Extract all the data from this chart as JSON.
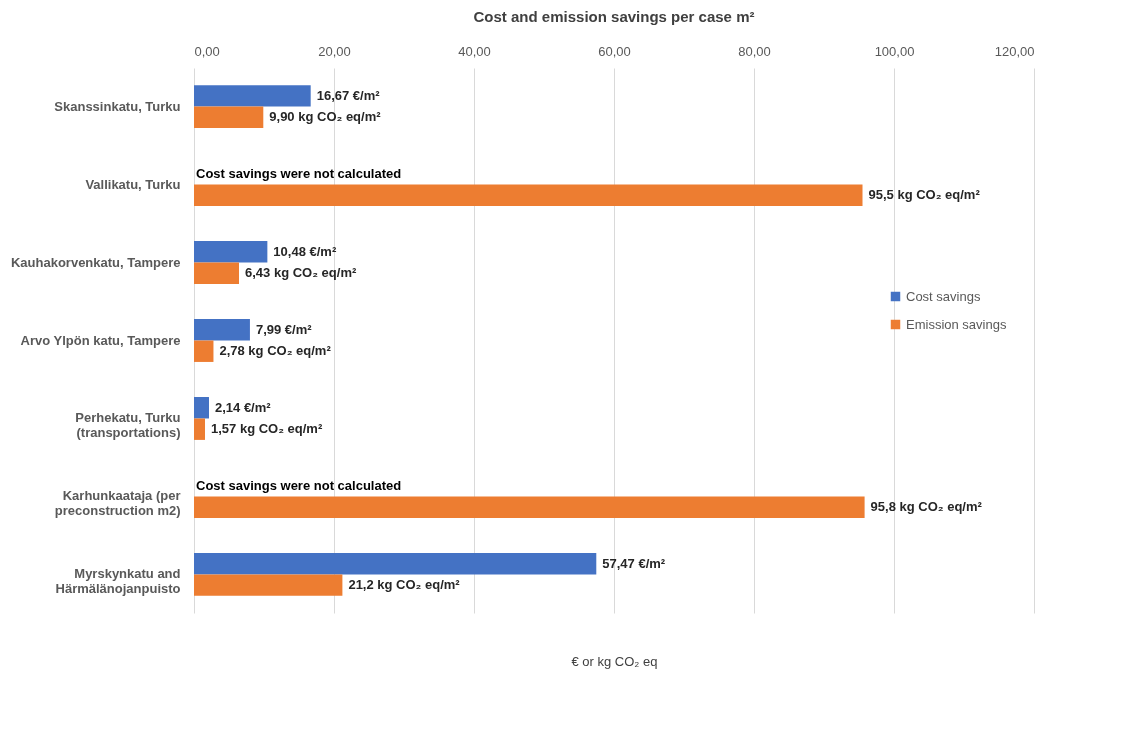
{
  "chart_data": {
    "type": "bar",
    "orientation": "horizontal",
    "title": "Cost and emission savings per case m²",
    "xlabel": "€ or kg CO₂ eq",
    "categories": [
      "Skanssinkatu, Turku",
      "Vallikatu, Turku",
      "Kauhakorvenkatu, Tampere",
      "Arvo Ylpön katu, Tampere",
      "Perhekatu, Turku\n(transportations)",
      "Karhunkaataja (per\npreconstruction m2)",
      "Myrskynkatu and\nHärmälänojanpuisto"
    ],
    "series": [
      {
        "name": "Cost savings",
        "color": "#4472c4",
        "values": [
          16.67,
          null,
          10.48,
          7.99,
          2.14,
          null,
          57.47
        ],
        "value_labels": [
          "16,67 €/m²",
          null,
          "10,48 €/m²",
          "7,99 €/m²",
          "2,14 €/m²",
          null,
          "57,47 €/m²"
        ]
      },
      {
        "name": "Emission savings",
        "color": "#ed7d31",
        "values": [
          9.9,
          95.5,
          6.43,
          2.78,
          1.57,
          95.8,
          21.2
        ],
        "value_labels": [
          "9,90 kg CO₂ eq/m²",
          "95,5 kg CO₂ eq/m²",
          "6,43 kg CO₂ eq/m²",
          "2,78 kg CO₂ eq/m²",
          "1,57 kg CO₂ eq/m²",
          "95,8 kg CO₂ eq/m²",
          "21,2 kg CO₂ eq/m²"
        ]
      }
    ],
    "xlim": [
      0,
      120
    ],
    "xticks": [
      {
        "value": 0,
        "label": "0,00"
      },
      {
        "value": 20,
        "label": "20,00"
      },
      {
        "value": 40,
        "label": "40,00"
      },
      {
        "value": 60,
        "label": "60,00"
      },
      {
        "value": 80,
        "label": "80,00"
      },
      {
        "value": 100,
        "label": "100,00"
      },
      {
        "value": 120,
        "label": "120,00"
      }
    ],
    "annotations": [
      {
        "text": "Cost savings were not calculated",
        "x": 0,
        "y": "Vallikatu, Turku"
      },
      {
        "text": "Cost savings were not calculated",
        "x": 0,
        "y": "Karhunkaataja (per\npreconstruction m2)"
      }
    ],
    "grid": "x",
    "legend": "right"
  }
}
